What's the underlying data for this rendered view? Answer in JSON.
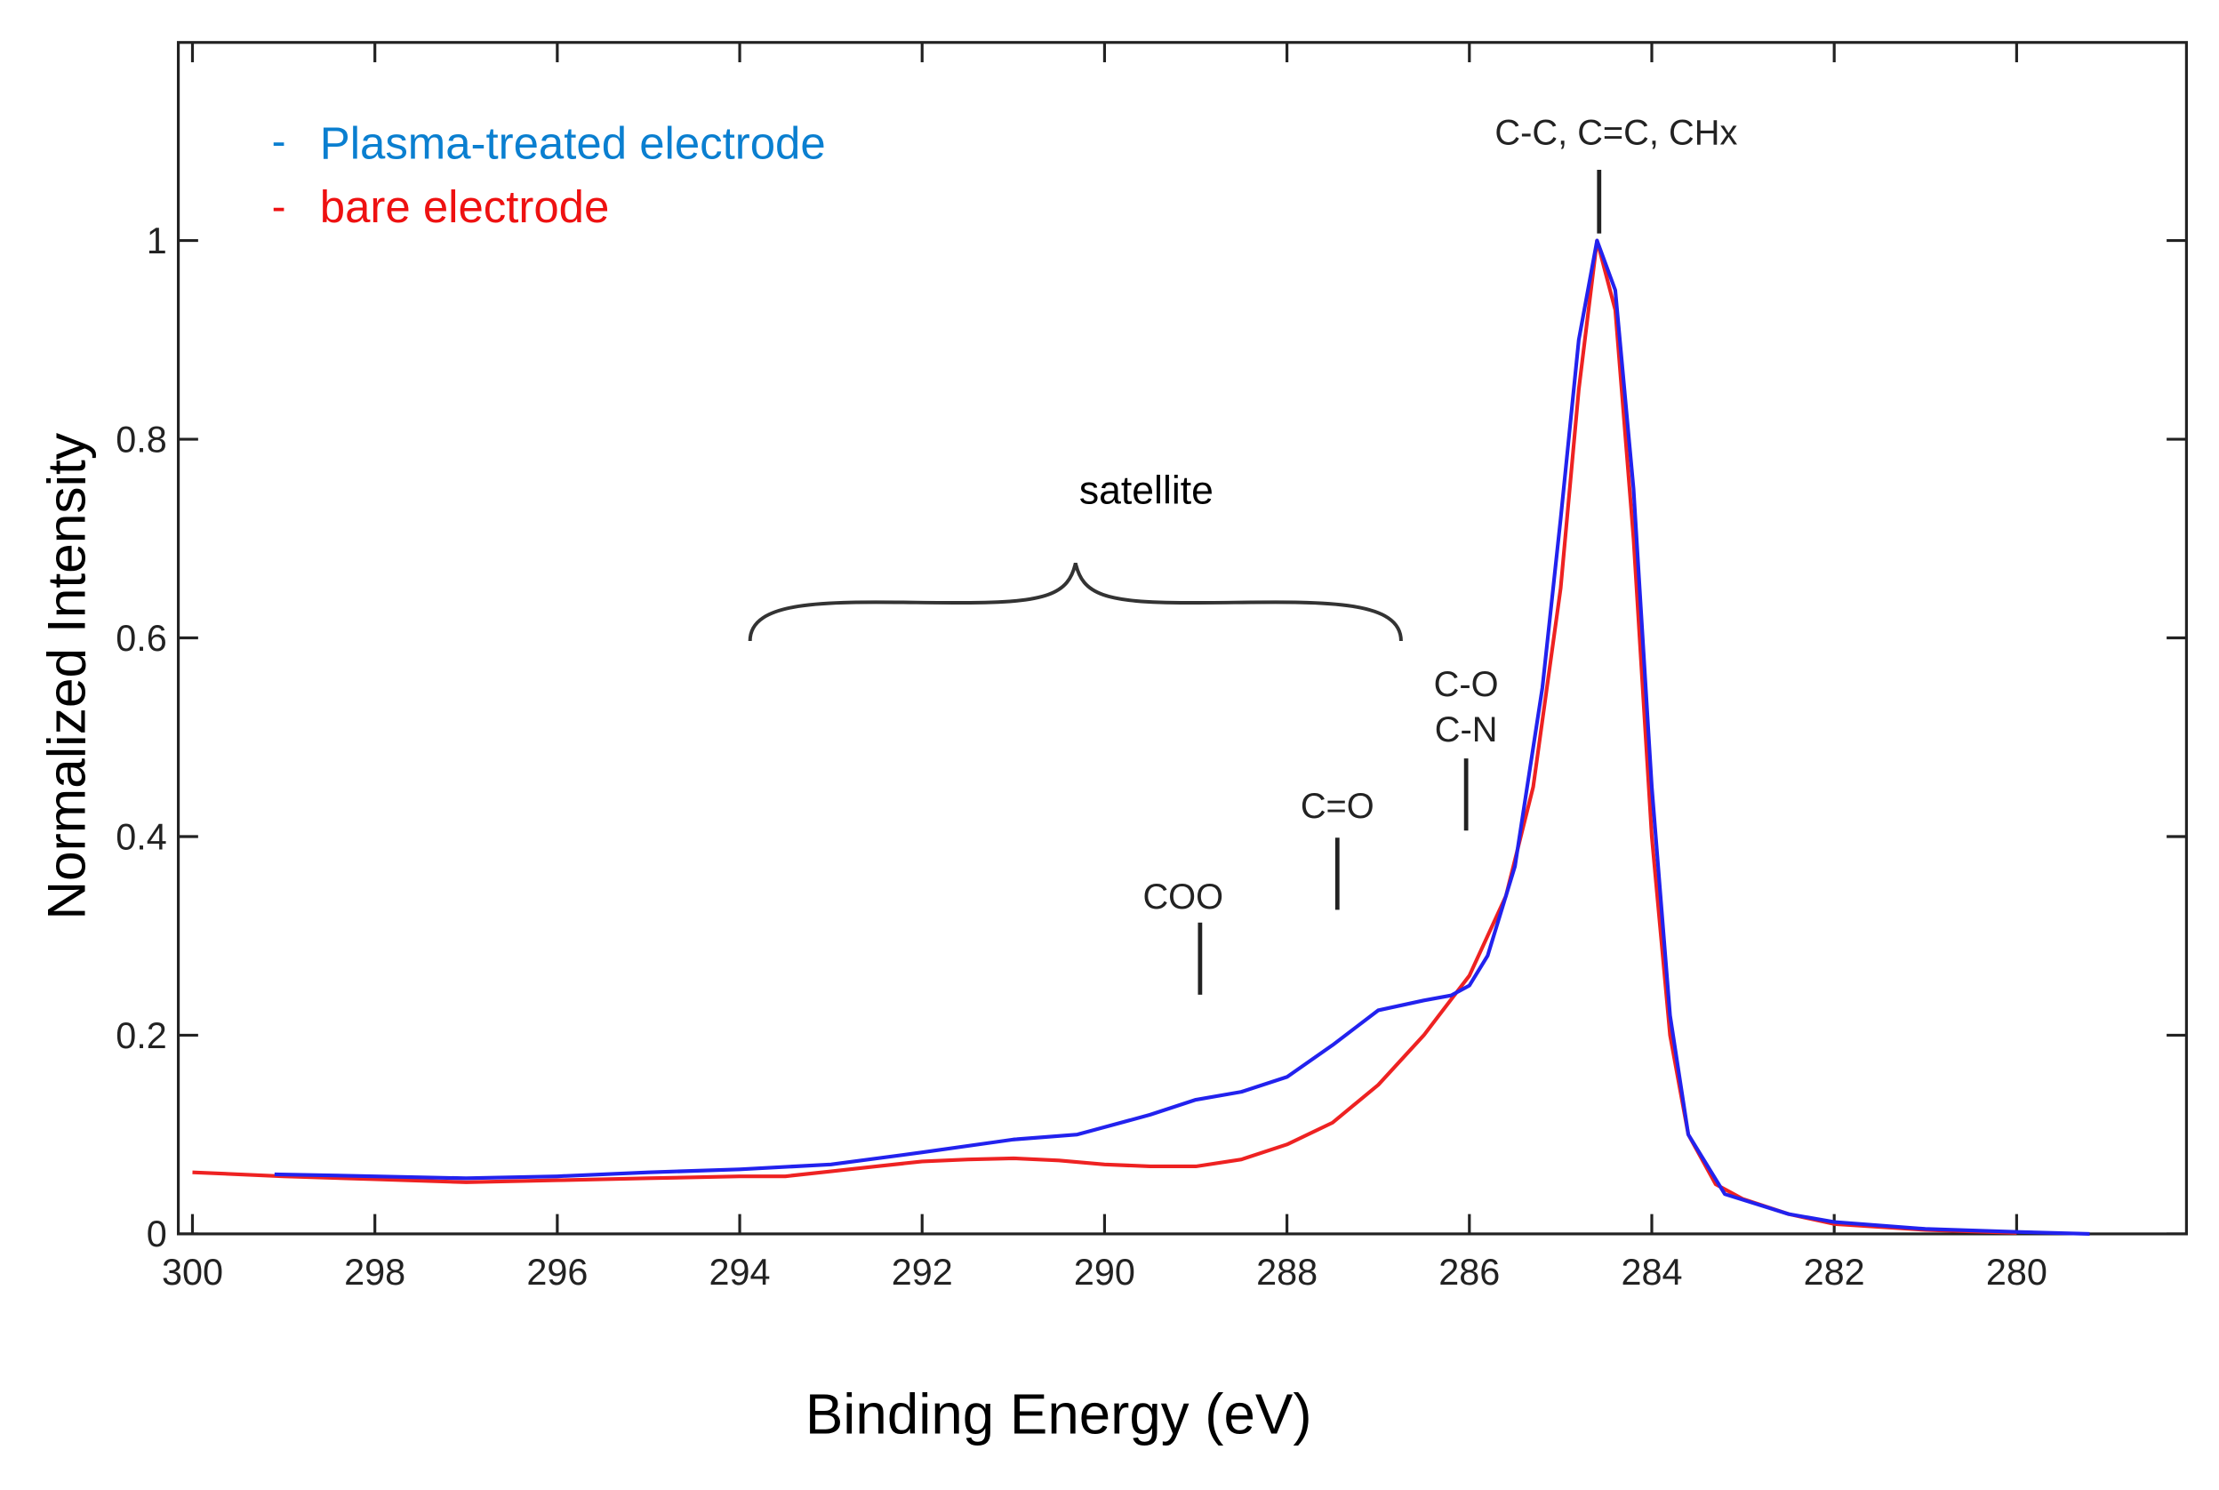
{
  "chart_data": {
    "type": "line",
    "title": "",
    "xlabel": "Binding Energy (eV)",
    "ylabel": "Normalized Intensity",
    "xlim": [
      300,
      278
    ],
    "ylim": [
      0,
      1.2
    ],
    "x_reversed": true,
    "grid": false,
    "legend_position": "top-left",
    "xticks": [
      300,
      298,
      296,
      294,
      292,
      290,
      288,
      286,
      284,
      282,
      280
    ],
    "xtick_labels": [
      "300",
      "298",
      "296",
      "294",
      "292",
      "290",
      "288",
      "286",
      "284",
      "282",
      "280"
    ],
    "yticks": [
      0,
      0.2,
      0.4,
      0.6,
      0.8,
      1
    ],
    "ytick_labels": [
      "0",
      "0.2",
      "0.4",
      "0.6",
      "0.8",
      "1"
    ],
    "series": [
      {
        "name": "Plasma-treated electrode",
        "legend_label": "Plasma-treated electrode",
        "color": "#2222ee",
        "legend_color": "#0a7fd0",
        "x": [
          299.1,
          298,
          297,
          296,
          295,
          294,
          293,
          292,
          291,
          290.3,
          289.5,
          289,
          288.5,
          288,
          287.5,
          287,
          286.5,
          286.2,
          286,
          285.8,
          285.5,
          285.2,
          285,
          284.8,
          284.6,
          284.4,
          284.2,
          284,
          283.8,
          283.6,
          283.2,
          282.5,
          282,
          281,
          280,
          279.2
        ],
        "y": [
          0.06,
          0.058,
          0.056,
          0.058,
          0.062,
          0.065,
          0.07,
          0.082,
          0.095,
          0.1,
          0.12,
          0.135,
          0.143,
          0.158,
          0.19,
          0.225,
          0.235,
          0.24,
          0.25,
          0.28,
          0.37,
          0.55,
          0.72,
          0.9,
          1.0,
          0.95,
          0.75,
          0.45,
          0.22,
          0.1,
          0.04,
          0.02,
          0.012,
          0.005,
          0.002,
          0.0
        ]
      },
      {
        "name": "bare electrode",
        "legend_label": "bare electrode",
        "color": "#ee2222",
        "legend_color": "#ee1111",
        "x": [
          300,
          299,
          298,
          297,
          296,
          295,
          294,
          293.5,
          293,
          292.5,
          292,
          291.5,
          291,
          290.5,
          290,
          289.5,
          289,
          288.5,
          288,
          287.5,
          287,
          286.5,
          286,
          285.6,
          285.3,
          285,
          284.8,
          284.6,
          284.4,
          284.2,
          284,
          283.8,
          283.6,
          283.3,
          283,
          282.5,
          282,
          281,
          280
        ],
        "y": [
          0.062,
          0.058,
          0.055,
          0.052,
          0.054,
          0.056,
          0.058,
          0.058,
          0.063,
          0.068,
          0.073,
          0.075,
          0.076,
          0.074,
          0.07,
          0.068,
          0.068,
          0.075,
          0.09,
          0.112,
          0.15,
          0.2,
          0.26,
          0.34,
          0.45,
          0.65,
          0.85,
          1.0,
          0.93,
          0.7,
          0.4,
          0.2,
          0.1,
          0.05,
          0.035,
          0.02,
          0.01,
          0.004,
          0.001
        ]
      }
    ],
    "annotations": [
      {
        "label": "C-C, C=C, CHx",
        "x": 284.6
      },
      {
        "label": "C-O",
        "label2": "C-N",
        "x": 286.05
      },
      {
        "label": "C=O",
        "x": 287.45
      },
      {
        "label": "COO",
        "x": 288.95
      },
      {
        "label": "satellite",
        "x_range": [
          293.9,
          286.8
        ]
      }
    ]
  }
}
